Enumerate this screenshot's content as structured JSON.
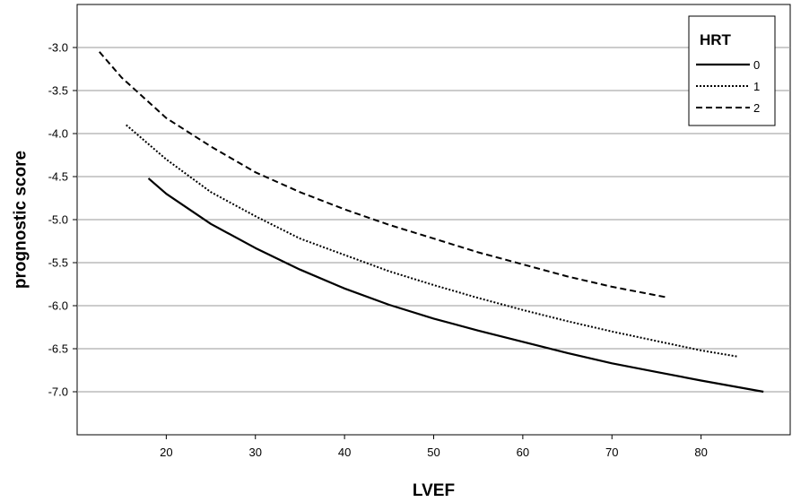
{
  "chart_data": {
    "type": "line",
    "xlabel": "LVEF",
    "ylabel": "prognostic score",
    "xlim": [
      10,
      90
    ],
    "ylim": [
      -7.5,
      -2.5
    ],
    "xticks": [
      20,
      30,
      40,
      50,
      60,
      70,
      80
    ],
    "yticks": [
      -3.0,
      -3.5,
      -4.0,
      -4.5,
      -5.0,
      -5.5,
      -6.0,
      -6.5,
      -7.0
    ],
    "ytick_labels": [
      "-3.0",
      "-3.5",
      "-4.0",
      "-4.5",
      "-5.0",
      "-5.5",
      "-6.0",
      "-6.5",
      "-7.0"
    ],
    "grid": "horizontal",
    "legend": {
      "title": "HRT",
      "placement": "top-right"
    },
    "series": [
      {
        "name": "0",
        "style": "solid",
        "x": [
          18,
          20,
          25,
          30,
          35,
          40,
          45,
          50,
          55,
          60,
          65,
          70,
          75,
          80,
          87
        ],
        "y": [
          -4.52,
          -4.7,
          -5.05,
          -5.33,
          -5.58,
          -5.8,
          -5.99,
          -6.15,
          -6.29,
          -6.42,
          -6.55,
          -6.67,
          -6.77,
          -6.87,
          -7.0
        ]
      },
      {
        "name": "1",
        "style": "dotted",
        "x": [
          15.5,
          20,
          25,
          30,
          35,
          40,
          45,
          50,
          55,
          60,
          65,
          70,
          75,
          80,
          84
        ],
        "y": [
          -3.9,
          -4.3,
          -4.68,
          -4.96,
          -5.22,
          -5.41,
          -5.6,
          -5.76,
          -5.91,
          -6.05,
          -6.18,
          -6.3,
          -6.41,
          -6.52,
          -6.59
        ]
      },
      {
        "name": "2",
        "style": "dashed",
        "x": [
          12.5,
          15,
          20,
          25,
          30,
          35,
          40,
          45,
          50,
          55,
          60,
          65,
          70,
          76
        ],
        "y": [
          -3.05,
          -3.35,
          -3.82,
          -4.15,
          -4.45,
          -4.68,
          -4.88,
          -5.06,
          -5.22,
          -5.38,
          -5.52,
          -5.66,
          -5.78,
          -5.9
        ]
      }
    ]
  }
}
